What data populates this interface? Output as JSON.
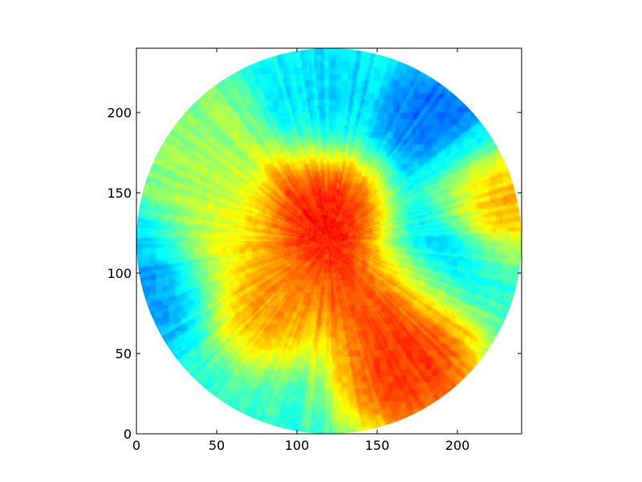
{
  "chart_data": {
    "type": "heatmap",
    "title": "",
    "xlabel": "",
    "ylabel": "",
    "xlim": [
      0,
      240
    ],
    "ylim": [
      0,
      240
    ],
    "grid": false,
    "colormap": "jet",
    "mask": "circle",
    "mask_center": [
      120,
      120
    ],
    "mask_radius": 120,
    "x_ticks": [
      0,
      50,
      100,
      150,
      200
    ],
    "y_ticks": [
      0,
      50,
      100,
      150,
      200
    ],
    "x_tick_labels": [
      "0",
      "50",
      "100",
      "150",
      "200"
    ],
    "y_tick_labels": [
      "0",
      "50",
      "100",
      "150",
      "200"
    ],
    "background_level": 0.42,
    "features": [
      {
        "region": "central-west-orange-mass",
        "x": 85,
        "y": 90,
        "level": 0.78
      },
      {
        "region": "west-yellow-band",
        "x": 55,
        "y": 125,
        "level": 0.62
      },
      {
        "region": "northwest-yellow-streaks",
        "x": 45,
        "y": 170,
        "level": 0.55
      },
      {
        "region": "central-red-core",
        "x": 128,
        "y": 128,
        "level": 0.93
      },
      {
        "region": "red-core-north",
        "x": 112,
        "y": 145,
        "level": 0.88
      },
      {
        "region": "southeast-red-line-upper",
        "x": 158,
        "y": 92,
        "level": 0.9
      },
      {
        "region": "southeast-red-line-lower",
        "x": 170,
        "y": 40,
        "level": 0.88
      },
      {
        "region": "east-red-blob",
        "x": 208,
        "y": 149,
        "level": 0.85
      },
      {
        "region": "east-dark-blue",
        "x": 180,
        "y": 120,
        "level": 0.1
      },
      {
        "region": "northeast-blue",
        "x": 190,
        "y": 180,
        "level": 0.15
      },
      {
        "region": "north-cyan",
        "x": 120,
        "y": 200,
        "level": 0.32
      },
      {
        "region": "west-edge-blue",
        "x": 10,
        "y": 95,
        "level": 0.25
      }
    ]
  }
}
